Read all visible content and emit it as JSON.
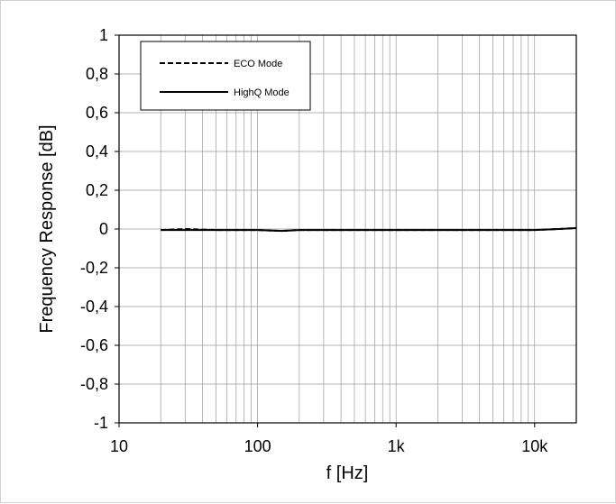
{
  "chart_data": {
    "type": "line",
    "x_scale": "log",
    "xlim": [
      10,
      20000
    ],
    "ylim": [
      -1,
      1
    ],
    "xlabel": "f [Hz]",
    "ylabel": "Frequency Response  [dB]",
    "grid": true,
    "legend_position": "top-left",
    "x_ticks": [
      {
        "value": 10,
        "label": "10"
      },
      {
        "value": 100,
        "label": "100"
      },
      {
        "value": 1000,
        "label": "1k"
      },
      {
        "value": 10000,
        "label": "10k"
      }
    ],
    "y_ticks": [
      {
        "value": 1,
        "label": "1"
      },
      {
        "value": 0.8,
        "label": "0,8"
      },
      {
        "value": 0.6,
        "label": "0,6"
      },
      {
        "value": 0.4,
        "label": "0,4"
      },
      {
        "value": 0.2,
        "label": "0,2"
      },
      {
        "value": 0,
        "label": "0"
      },
      {
        "value": -0.2,
        "label": "-0,2"
      },
      {
        "value": -0.4,
        "label": "-0,4"
      },
      {
        "value": -0.6,
        "label": "-0,6"
      },
      {
        "value": -0.8,
        "label": "-0,8"
      },
      {
        "value": -1,
        "label": "-1"
      }
    ],
    "series": [
      {
        "name": "ECO Mode",
        "line_style": "dashed",
        "color": "#000000",
        "x": [
          20,
          30,
          50,
          100,
          150,
          200,
          300,
          500,
          1000,
          2000,
          5000,
          10000,
          15000,
          20000
        ],
        "y": [
          -0.005,
          0.0,
          -0.005,
          -0.005,
          -0.01,
          -0.005,
          -0.005,
          -0.005,
          -0.005,
          -0.005,
          -0.005,
          -0.005,
          0.0,
          0.005
        ]
      },
      {
        "name": "HighQ Mode",
        "line_style": "solid",
        "color": "#000000",
        "x": [
          20,
          30,
          50,
          100,
          150,
          200,
          300,
          500,
          1000,
          2000,
          5000,
          10000,
          15000,
          20000
        ],
        "y": [
          -0.005,
          -0.005,
          -0.005,
          -0.005,
          -0.01,
          -0.005,
          -0.005,
          -0.005,
          -0.005,
          -0.005,
          -0.005,
          -0.005,
          0.0,
          0.005
        ]
      }
    ]
  }
}
